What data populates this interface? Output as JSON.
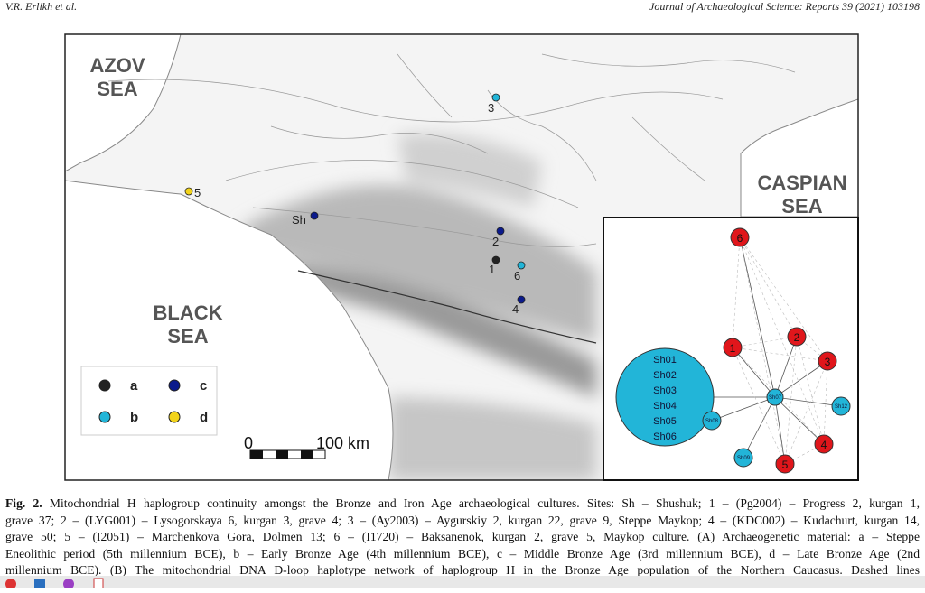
{
  "header": {
    "authors": "V.R. Erlikh et al.",
    "journal": "Journal of Archaeological Science: Reports 39 (2021) 103198"
  },
  "map": {
    "seas": [
      {
        "lines": [
          "AZOV",
          "SEA"
        ]
      },
      {
        "lines": [
          "CASPIAN",
          "SEA"
        ]
      },
      {
        "lines": [
          "BLACK",
          "SEA"
        ]
      }
    ],
    "sites": [
      {
        "label": "Sh"
      },
      {
        "label": "1"
      },
      {
        "label": "2"
      },
      {
        "label": "3"
      },
      {
        "label": "4"
      },
      {
        "label": "5"
      },
      {
        "label": "6"
      }
    ],
    "legend": [
      {
        "label": "a"
      },
      {
        "label": "c"
      },
      {
        "label": "b"
      },
      {
        "label": "d"
      }
    ],
    "scale": {
      "start": "0",
      "end": "100 km"
    }
  },
  "network": {
    "cluster": [
      "Sh01",
      "Sh02",
      "Sh03",
      "Sh04",
      "Sh05",
      "Sh06"
    ],
    "center": "Sh07",
    "small_nodes": [
      "Sh08",
      "Sh09",
      "Sh12"
    ],
    "red_nodes": [
      "6",
      "1",
      "2",
      "3",
      "4",
      "5"
    ]
  },
  "caption": {
    "label": "Fig. 2.",
    "lines": [
      "Mitochondrial H haplogroup continuity amongst the Bronze and Iron Age archaeological cultures. Sites: Sh – Shushuk; 1 – (Pg2004) – Progress 2, kurgan 1,",
      "grave 37; 2 – (LYG001) – Lysogorskaya 6, kurgan 3, grave 4; 3 – (Ay2003) – Aygurskiy 2, kurgan 22, grave 9, Steppe Maykop; 4 – (KDC002) – Kudachurt, kurgan 14,",
      "grave 50; 5 – (I2051) – Marchenkova Gora, Dolmen 13; 6 – (I1720) – Baksanenok, kurgan 2, grave 5, Maykop culture. (A) Archaeogenetic material: a – Steppe",
      "Eneolithic period (5th millennium BCE), b – Early Bronze Age (4th millennium BCE), c – Middle Bronze Age (3rd millennium BCE), d – Late Bronze Age (2nd",
      "millennium BCE). (B) The mitochondrial DNA D-loop haplotype network of haplogroup H in the Bronze Age population of the Northern Caucasus. Dashed lines"
    ]
  }
}
